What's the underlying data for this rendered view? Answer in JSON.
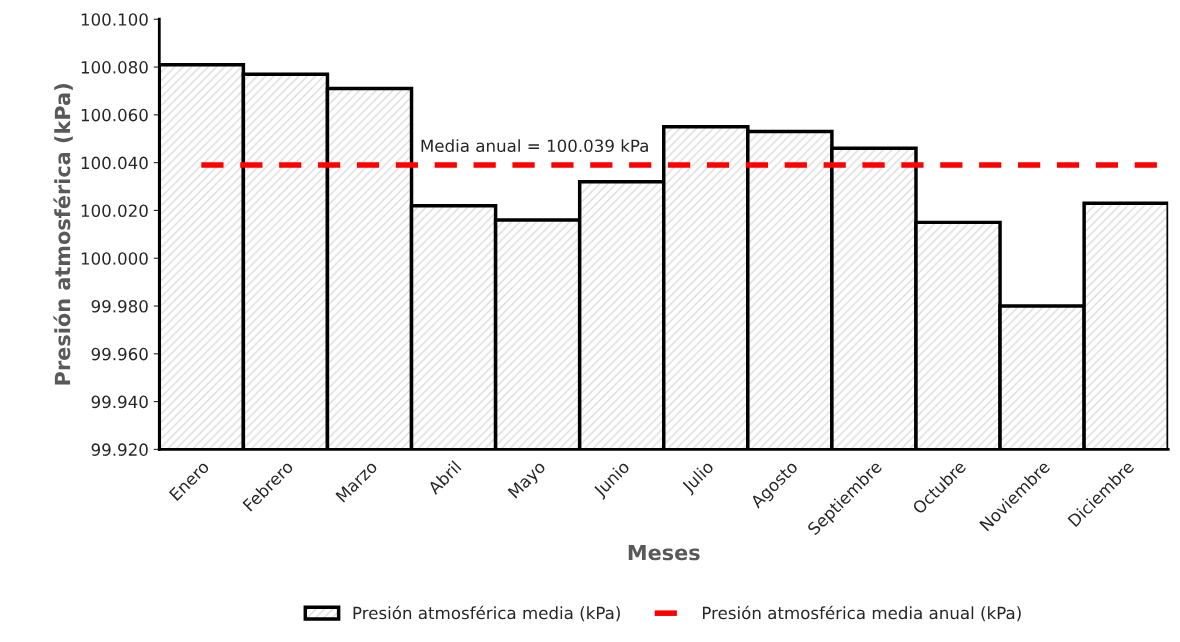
{
  "chart_data": {
    "type": "bar",
    "xlabel": "Meses",
    "ylabel": "Presión atmosférica (kPa)",
    "categories": [
      "Enero",
      "Febrero",
      "Marzo",
      "Abril",
      "Mayo",
      "Junio",
      "Julio",
      "Agosto",
      "Septiembre",
      "Octubre",
      "Noviembre",
      "Diciembre"
    ],
    "series": [
      {
        "name": "Presión atmosférica media (kPa)",
        "color": "#000000",
        "values": [
          100.081,
          100.077,
          100.071,
          100.022,
          100.016,
          100.032,
          100.055,
          100.053,
          100.046,
          100.015,
          99.98,
          100.023
        ]
      }
    ],
    "ref_lines": [
      {
        "axis": "y",
        "value": 100.039,
        "label": "Presión atmosférica media anual (kPa)",
        "color": "#ff0000",
        "line_style": "dashed"
      }
    ],
    "ylim": [
      99.92,
      100.1
    ],
    "yticks": [
      {
        "value": 99.92,
        "label": "99.920"
      },
      {
        "value": 99.94,
        "label": "99.940"
      },
      {
        "value": 99.96,
        "label": "99.960"
      },
      {
        "value": 99.98,
        "label": "99.980"
      },
      {
        "value": 100.0,
        "label": "100.000"
      },
      {
        "value": 100.02,
        "label": "100.020"
      },
      {
        "value": 100.04,
        "label": "100.040"
      },
      {
        "value": 100.06,
        "label": "100.060"
      },
      {
        "value": 100.08,
        "label": "100.080"
      },
      {
        "value": 100.1,
        "label": "100.100"
      }
    ],
    "annotations": [
      {
        "text": "Media anual = 100.039 kPa",
        "y": 100.039
      }
    ],
    "grid": false,
    "legend": "bottom"
  }
}
